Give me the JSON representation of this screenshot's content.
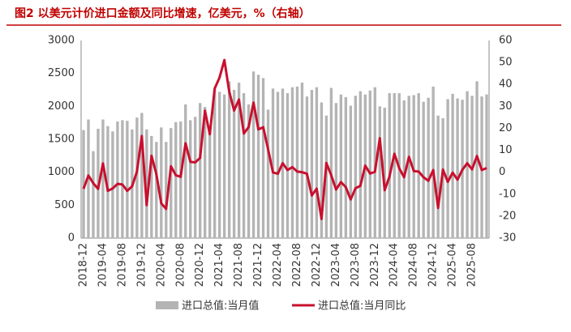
{
  "chart_data": {
    "type": "bar",
    "title": "图2  以美元计价进口金额及同比增速，亿美元，%（右轴）",
    "categories": [
      "2018-12",
      null,
      null,
      null,
      "2019-04",
      null,
      null,
      null,
      "2019-08",
      null,
      null,
      null,
      "2019-12",
      null,
      null,
      null,
      "2020-04",
      null,
      null,
      null,
      "2020-08",
      null,
      null,
      null,
      "2020-12",
      null,
      null,
      null,
      "2021-04",
      null,
      null,
      null,
      "2021-08",
      null,
      null,
      null,
      "2021-12",
      null,
      null,
      null,
      "2022-04",
      null,
      null,
      null,
      "2022-08",
      null,
      null,
      null,
      "2022-12",
      null,
      null,
      null,
      "2023-04",
      null,
      null,
      null,
      "2023-08",
      null,
      null,
      null,
      "2023-12",
      null,
      null,
      null,
      "2024-04",
      null,
      null,
      null,
      "2024-08",
      null,
      null,
      null,
      "2024-12",
      null,
      null,
      null,
      "2025-04",
      null,
      null,
      null,
      "2025-08",
      null,
      null,
      null
    ],
    "series": [
      {
        "name": "进口总值:当月值",
        "type": "bar",
        "color": "#b4b4b4",
        "values": [
          1640,
          1800,
          1320,
          1660,
          1800,
          1700,
          1620,
          1770,
          1790,
          1780,
          1650,
          1830,
          1900,
          1650,
          1550,
          1460,
          1680,
          1460,
          1670,
          1760,
          1770,
          2030,
          1790,
          1840,
          2050,
          1990,
          1630,
          2260,
          2220,
          2180,
          2380,
          2250,
          2360,
          2200,
          2030,
          2530,
          2480,
          2430,
          1950,
          2270,
          2220,
          2270,
          2200,
          2290,
          2300,
          2360,
          2150,
          2250,
          2290,
          2060,
          1860,
          2280,
          2050,
          2180,
          2140,
          2010,
          2160,
          2230,
          2180,
          2240,
          2290,
          2000,
          1980,
          2200,
          2200,
          2200,
          2090,
          2160,
          2170,
          2200,
          2070,
          2130,
          2300,
          1860,
          1820,
          2110,
          2190,
          2120,
          2100,
          2230,
          2160,
          2380,
          2150,
          2180
        ]
      },
      {
        "name": "进口总值:当月同比",
        "type": "line",
        "axis": "y2",
        "color": "#c8102e",
        "values": [
          -7.6,
          -1.5,
          -5,
          -7.6,
          4.0,
          -8.5,
          -7.4,
          -5.3,
          -5.6,
          -8.5,
          -6.4,
          0.3,
          16.5,
          -15,
          7.5,
          -0.9,
          -14.2,
          -16.7,
          2.7,
          -1.4,
          -2.1,
          13.2,
          4.7,
          4.5,
          6.5,
          28.0,
          17.3,
          38.1,
          43.1,
          51.1,
          36.7,
          28.1,
          33.1,
          17.6,
          20.6,
          31.7,
          19.5,
          20.5,
          10.4,
          -0.1,
          -0.7,
          4.1,
          1.0,
          2.3,
          0.3,
          0.0,
          -0.7,
          -10.6,
          -7.5,
          -21.3,
          4.2,
          -1.4,
          -7.9,
          -4.5,
          -6.8,
          -12.4,
          -7.3,
          -6.2,
          3.0,
          -0.6,
          0.2,
          15.5,
          -8.2,
          -1.9,
          8.4,
          1.8,
          -2.3,
          7.0,
          0.5,
          0.3,
          -2.3,
          -3.9,
          1.0,
          -16.3,
          1.2,
          -4.4,
          -0.2,
          -3.4,
          1.1,
          4.1,
          1.3,
          7.4,
          1.0,
          1.9
        ]
      }
    ],
    "ylim": [
      0,
      3000
    ],
    "yticks": [
      0,
      500,
      1000,
      1500,
      2000,
      2500,
      3000
    ],
    "y2lim": [
      -30,
      60
    ],
    "y2ticks": [
      -30,
      -20,
      -10,
      0,
      10,
      20,
      30,
      40,
      50,
      60
    ]
  }
}
